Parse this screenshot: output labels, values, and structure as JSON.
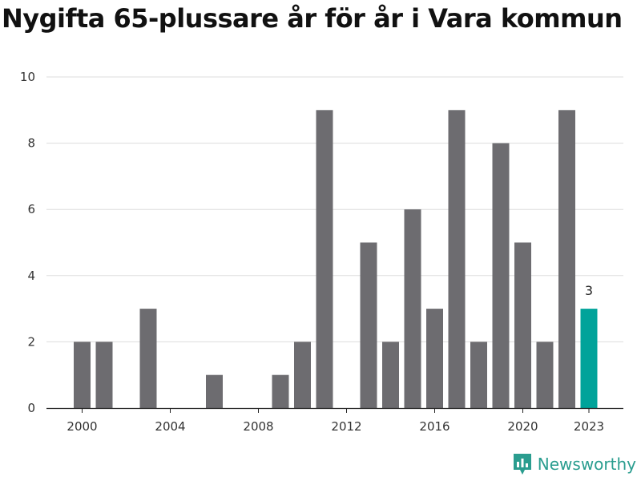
{
  "chart_data": {
    "type": "bar",
    "title": "Nygifta 65-plussare år för år i Vara kommun",
    "categories": [
      "2000",
      "2001",
      "2002",
      "2003",
      "2004",
      "2005",
      "2006",
      "2007",
      "2008",
      "2009",
      "2010",
      "2011",
      "2012",
      "2013",
      "2014",
      "2015",
      "2016",
      "2017",
      "2018",
      "2019",
      "2020",
      "2021",
      "2022",
      "2023"
    ],
    "values": [
      2,
      2,
      0,
      3,
      0,
      0,
      1,
      0,
      0,
      1,
      2,
      9,
      0,
      5,
      2,
      6,
      3,
      9,
      2,
      8,
      5,
      2,
      9,
      3
    ],
    "x_tick_labels": [
      "2000",
      "2004",
      "2008",
      "2012",
      "2016",
      "2020",
      "2023"
    ],
    "y_ticks": [
      "0",
      "2",
      "4",
      "6",
      "8",
      "10"
    ],
    "ylim": [
      0,
      10
    ],
    "grid": true,
    "highlight": {
      "category": "2023",
      "label": "3"
    },
    "colors": {
      "bar": "#6d6c70",
      "highlight": "#00a39a",
      "grid": "#dddddd"
    }
  },
  "brand": {
    "name": "Newsworthy",
    "color": "#2a9d8f"
  }
}
